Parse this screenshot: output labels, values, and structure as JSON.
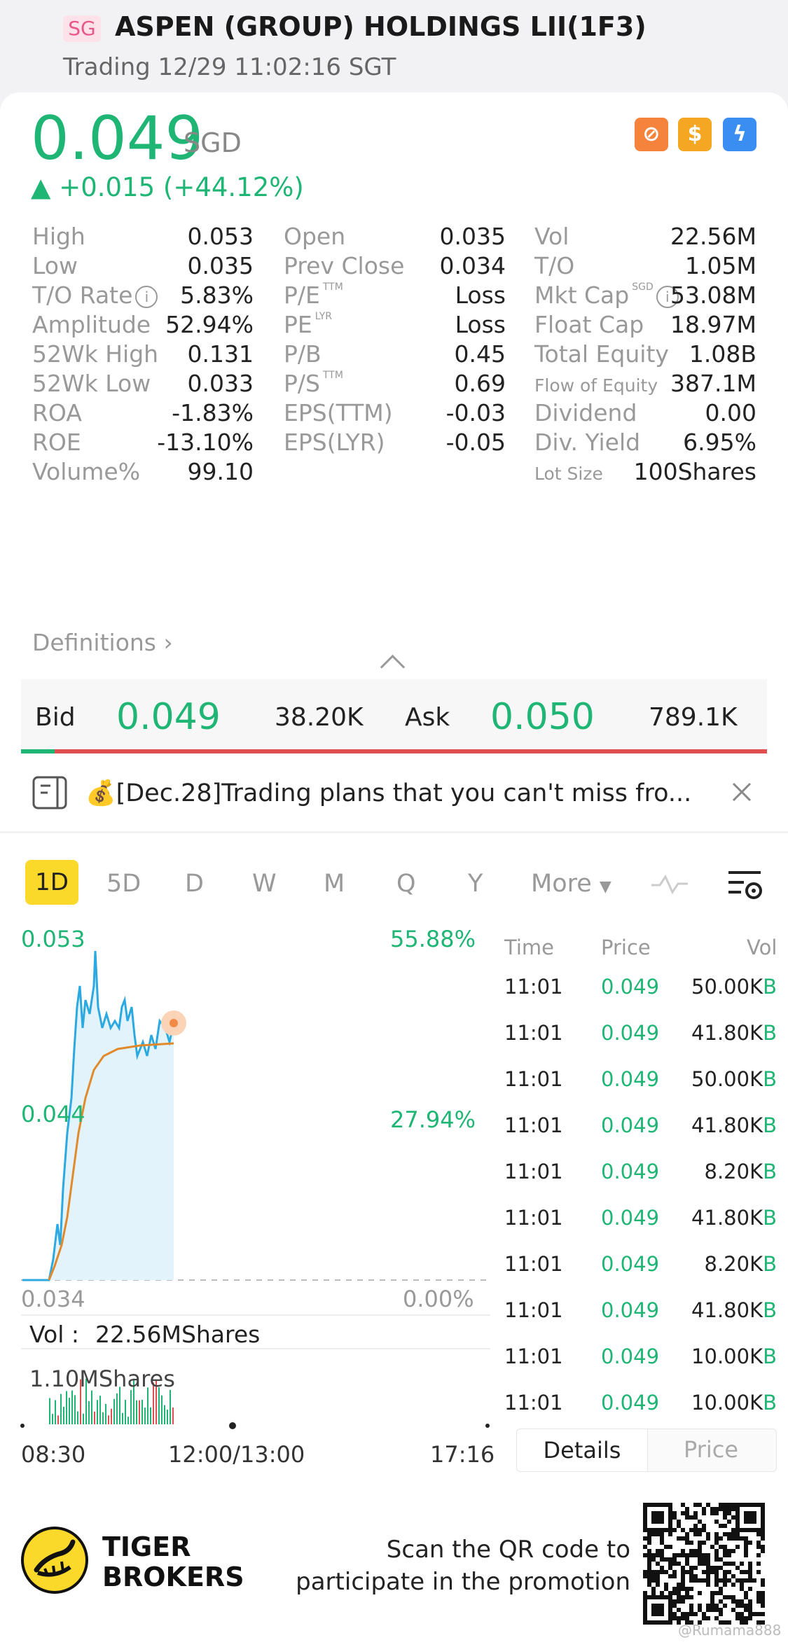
{
  "header": {
    "market": "SG",
    "title": "ASPEN (GROUP) HOLDINGS LII(1F3)",
    "status": "Trading 12/29 11:02:16 SGT"
  },
  "quote": {
    "price": "0.049",
    "currency": "SGD",
    "change": "▲ +0.015 (+44.12%)",
    "badges": [
      "no-short-icon",
      "dollar-icon",
      "lightning-icon"
    ]
  },
  "stats": {
    "col1": [
      {
        "label": "High",
        "value": "0.053"
      },
      {
        "label": "Low",
        "value": "0.035"
      },
      {
        "label": "T/O Rate",
        "value": "5.83%"
      },
      {
        "label": "Amplitude",
        "value": "52.94%"
      },
      {
        "label": "52Wk High",
        "value": "0.131"
      },
      {
        "label": "52Wk Low",
        "value": "0.033"
      },
      {
        "label": "ROA",
        "value": "-1.83%"
      },
      {
        "label": "ROE",
        "value": "-13.10%"
      },
      {
        "label": "Volume%",
        "value": "99.10"
      }
    ],
    "col2": [
      {
        "label": "Open",
        "sup": "",
        "value": "0.035"
      },
      {
        "label": "Prev Close",
        "sup": "",
        "value": "0.034"
      },
      {
        "label": "P/E",
        "sup": "TTM",
        "value": "Loss"
      },
      {
        "label": "PE",
        "sup": "LYR",
        "value": "Loss"
      },
      {
        "label": "P/B",
        "sup": "",
        "value": "0.45"
      },
      {
        "label": "P/S",
        "sup": "TTM",
        "value": "0.69"
      },
      {
        "label": "EPS(TTM)",
        "sup": "",
        "value": "-0.03"
      },
      {
        "label": "EPS(LYR)",
        "sup": "",
        "value": "-0.05"
      }
    ],
    "col3": [
      {
        "label": "Vol",
        "sup": "",
        "value": "22.56M"
      },
      {
        "label": "T/O",
        "sup": "",
        "value": "1.05M"
      },
      {
        "label": "Mkt Cap",
        "sup": "SGD",
        "value": "53.08M"
      },
      {
        "label": "Float Cap",
        "sup": "",
        "value": "18.97M"
      },
      {
        "label": "Total Equity",
        "sup": "",
        "value": "1.08B"
      },
      {
        "label": "Flow of Equity",
        "sup": "",
        "value": "387.1M"
      },
      {
        "label": "Dividend",
        "sup": "",
        "value": "0.00"
      },
      {
        "label": "Div. Yield",
        "sup": "",
        "value": "6.95%"
      },
      {
        "label": "Lot Size",
        "sup": "",
        "value": "100Shares"
      }
    ],
    "definitions": "Definitions"
  },
  "orderbook": {
    "bid_label": "Bid",
    "bid_price": "0.049",
    "bid_qty": "38.20K",
    "ask_label": "Ask",
    "ask_price": "0.050",
    "ask_qty": "789.1K",
    "bid_ratio": 0.045
  },
  "notice": {
    "text": "💰[Dec.28]Trading plans that you can't miss fro..."
  },
  "tabs": [
    "1D",
    "5D",
    "D",
    "W",
    "M",
    "Q",
    "Y",
    "More"
  ],
  "active_tab": "1D",
  "chart": {
    "high": "0.053",
    "mid": "0.044",
    "low": "0.034",
    "pct_high": "55.88%",
    "pct_mid": "27.94%",
    "pct_low": "0.00%",
    "vol_label": "Vol :",
    "vol_value": "22.56MShares",
    "vol_max": "1.10MShares",
    "time_start": "08:30",
    "time_mid": "12:00/13:00",
    "time_end": "17:16"
  },
  "trades": {
    "headers": [
      "Time",
      "Price",
      "Vol"
    ],
    "rows": [
      {
        "time": "11:01",
        "price": "0.049",
        "vol": "50.00K",
        "side": "B"
      },
      {
        "time": "11:01",
        "price": "0.049",
        "vol": "41.80K",
        "side": "B"
      },
      {
        "time": "11:01",
        "price": "0.049",
        "vol": "50.00K",
        "side": "B"
      },
      {
        "time": "11:01",
        "price": "0.049",
        "vol": "41.80K",
        "side": "B"
      },
      {
        "time": "11:01",
        "price": "0.049",
        "vol": "8.20K",
        "side": "B"
      },
      {
        "time": "11:01",
        "price": "0.049",
        "vol": "41.80K",
        "side": "B"
      },
      {
        "time": "11:01",
        "price": "0.049",
        "vol": "8.20K",
        "side": "B"
      },
      {
        "time": "11:01",
        "price": "0.049",
        "vol": "41.80K",
        "side": "B"
      },
      {
        "time": "11:01",
        "price": "0.049",
        "vol": "10.00K",
        "side": "B"
      },
      {
        "time": "11:01",
        "price": "0.049",
        "vol": "10.00K",
        "side": "B"
      }
    ],
    "tab_details": "Details",
    "tab_price": "Price"
  },
  "footer": {
    "brand_line1": "TIGER",
    "brand_line2": "BROKERS",
    "scan_line1": "Scan the QR code to",
    "scan_line2": "participate in the promotion",
    "watermark": "@Rumama888"
  },
  "colors": {
    "up": "#1fb575",
    "down": "#e04f4f",
    "accent": "#fbd92b"
  }
}
